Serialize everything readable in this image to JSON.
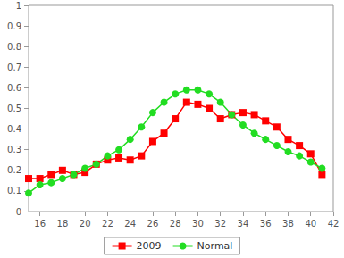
{
  "chart_data": {
    "type": "line",
    "x": [
      15,
      16,
      17,
      18,
      19,
      20,
      21,
      22,
      23,
      24,
      25,
      26,
      27,
      28,
      29,
      30,
      31,
      32,
      33,
      34,
      35,
      36,
      37,
      38,
      39,
      40,
      41
    ],
    "series": [
      {
        "name": "2009",
        "color": "#ff0000",
        "marker": "square",
        "line_style": "solid",
        "values": [
          0.16,
          0.16,
          0.18,
          0.2,
          0.18,
          0.19,
          0.23,
          0.25,
          0.26,
          0.25,
          0.27,
          0.34,
          0.38,
          0.45,
          0.53,
          0.52,
          0.5,
          0.45,
          0.47,
          0.48,
          0.47,
          0.44,
          0.41,
          0.35,
          0.32,
          0.28,
          0.18
        ]
      },
      {
        "name": "Normal",
        "color": "#22dd22",
        "marker": "circle",
        "line_style": "solid",
        "values": [
          0.09,
          0.13,
          0.14,
          0.16,
          0.18,
          0.21,
          0.23,
          0.27,
          0.3,
          0.35,
          0.41,
          0.48,
          0.53,
          0.57,
          0.59,
          0.59,
          0.57,
          0.53,
          0.47,
          0.42,
          0.38,
          0.35,
          0.32,
          0.29,
          0.27,
          0.24,
          0.21
        ]
      }
    ],
    "xlim": [
      15,
      42
    ],
    "xticks": [
      16,
      18,
      20,
      22,
      24,
      26,
      28,
      30,
      32,
      34,
      36,
      38,
      40,
      42
    ],
    "ylim": [
      0,
      1
    ],
    "yticks": [
      0,
      0.1,
      0.2,
      0.3,
      0.4,
      0.5,
      0.6,
      0.7,
      0.8,
      0.9,
      1
    ],
    "grid": false,
    "legend": "bottom"
  }
}
